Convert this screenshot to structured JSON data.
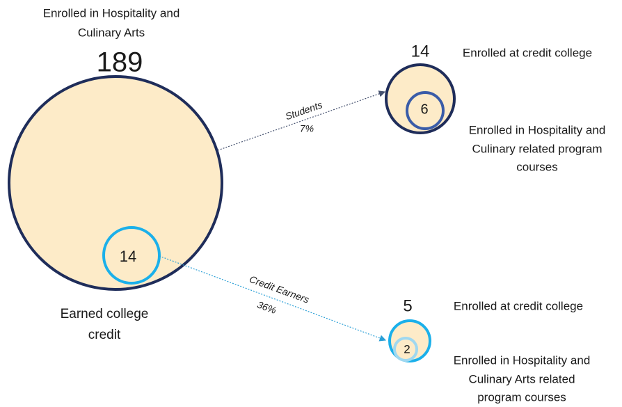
{
  "main": {
    "label": [
      "Enrolled in Hospitality and",
      "Culinary Arts"
    ],
    "count": 189
  },
  "subset": {
    "count": 14,
    "label": [
      "Earned college",
      "credit"
    ]
  },
  "flows": [
    {
      "label": "Students",
      "percent": "7%",
      "target": {
        "count": 14,
        "label": "Enrolled at credit college",
        "inner_count": 6,
        "inner_label": [
          "Enrolled in Hospitality and",
          "Culinary related program",
          "courses"
        ]
      }
    },
    {
      "label": "Credit Earners",
      "percent": "36%",
      "target": {
        "count": 5,
        "label": "Enrolled at credit college",
        "inner_count": 2,
        "inner_label": [
          "Enrolled in Hospitality and",
          "Culinary Arts related",
          "program courses"
        ]
      }
    }
  ]
}
